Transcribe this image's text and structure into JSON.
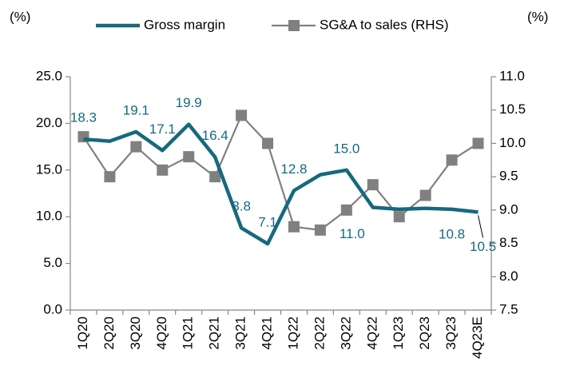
{
  "chart_data": {
    "type": "line",
    "y_label": "(%)",
    "y2_label": "(%)",
    "categories": [
      "1Q20",
      "2Q20",
      "3Q20",
      "4Q20",
      "1Q21",
      "2Q21",
      "3Q21",
      "4Q21",
      "1Q22",
      "2Q22",
      "3Q22",
      "4Q22",
      "1Q23",
      "2Q23",
      "3Q23",
      "4Q23E"
    ],
    "series": [
      {
        "name": "Gross margin",
        "color": "#16697e",
        "values": [
          18.3,
          18.1,
          19.1,
          17.1,
          19.9,
          16.4,
          8.8,
          7.1,
          12.8,
          14.5,
          15.0,
          11.0,
          10.8,
          10.9,
          10.8,
          10.5
        ],
        "value_labels": [
          "18.3",
          null,
          "19.1",
          "17.1",
          "19.9",
          "16.4",
          "8.8",
          "7.1",
          "12.8",
          null,
          "15.0",
          "11.0",
          null,
          null,
          "10.8",
          "10.5"
        ]
      },
      {
        "name": "SG&A to sales (RHS)",
        "color": "#808080",
        "axis": "y2",
        "values": [
          10.1,
          9.5,
          9.95,
          9.6,
          9.8,
          9.5,
          10.42,
          10.0,
          8.75,
          8.7,
          9.0,
          9.38,
          8.9,
          9.22,
          9.75,
          10.0
        ]
      }
    ],
    "ylim": [
      0,
      25
    ],
    "yticks": [
      {
        "value": 0,
        "label": "0.0"
      },
      {
        "value": 5,
        "label": "5.0"
      },
      {
        "value": 10,
        "label": "10.0"
      },
      {
        "value": 15,
        "label": "15.0"
      },
      {
        "value": 20,
        "label": "20.0"
      },
      {
        "value": 25,
        "label": "25.0"
      }
    ],
    "y2lim": [
      7.5,
      11
    ],
    "y2ticks": [
      7.5,
      {
        "value": 8,
        "label": "8.0"
      },
      8.5,
      {
        "value": 9,
        "label": "9.0"
      },
      9.5,
      {
        "value": 10,
        "label": "10.0"
      },
      10.5,
      {
        "value": 11,
        "label": "11.0"
      }
    ],
    "grid": false
  }
}
